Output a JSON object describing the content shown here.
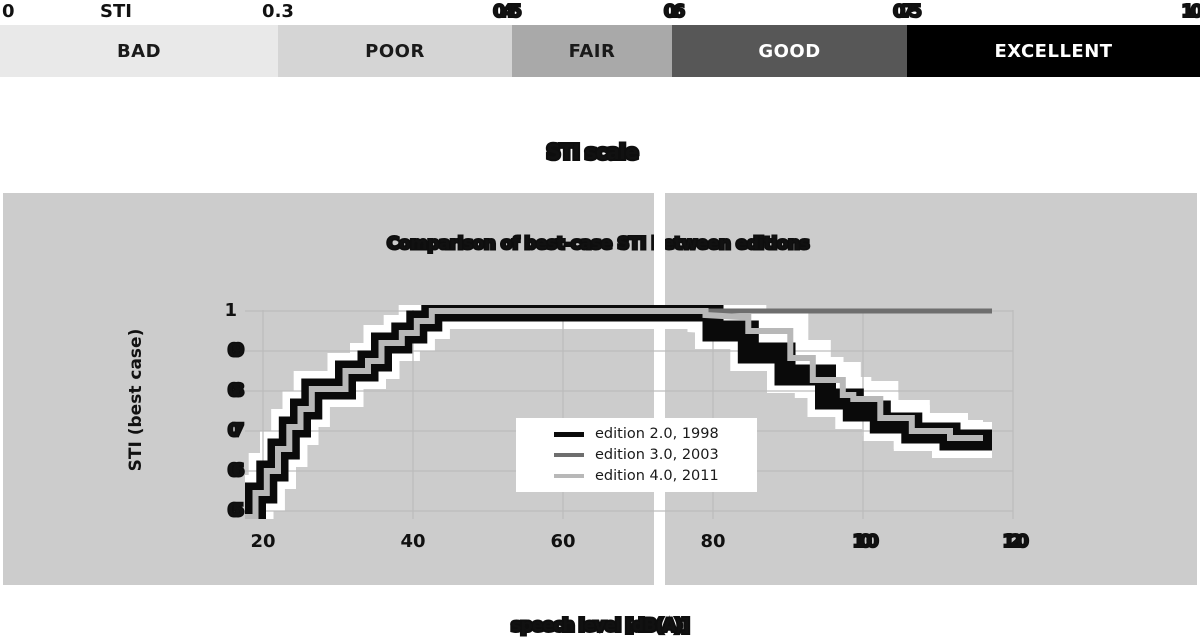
{
  "scale_bar": {
    "axis_label": "STI",
    "ticks": [
      "0",
      "0.3",
      "0.45",
      "0.6",
      "0.75",
      "1.0"
    ],
    "categories": [
      {
        "label": "BAD",
        "color": "#e9e9e9",
        "text_color": "#1a1a1a"
      },
      {
        "label": "POOR",
        "color": "#d5d5d5",
        "text_color": "#1a1a1a"
      },
      {
        "label": "FAIR",
        "color": "#a9a9a9",
        "text_color": "#1a1a1a"
      },
      {
        "label": "GOOD",
        "color": "#575757",
        "text_color": "#ffffff"
      },
      {
        "label": "EXCELLENT",
        "color": "#000000",
        "text_color": "#ffffff"
      }
    ]
  },
  "figure_title": "STI scale",
  "chart_data": {
    "type": "line",
    "title": "Comparison of best-case STI between editions",
    "ylabel": "STI (best case)",
    "xlabel": "speech level [dB(A)]",
    "xlim": [
      17.6,
      123
    ],
    "ylim": [
      0.4825,
      1.0
    ],
    "xticklabels": [
      "20",
      "40",
      "60",
      "80",
      "100",
      "120"
    ],
    "xtick_values": [
      20,
      40,
      60,
      80,
      100,
      120
    ],
    "yticklabels": [
      "1",
      "0.9",
      "0.8",
      "0.7",
      "0.6",
      "0.5"
    ],
    "ytick_values": [
      1,
      0.9,
      0.8,
      0.7,
      0.6,
      0.5
    ],
    "grid": true,
    "grid_color": "#bdbdbd",
    "background": "#cccccc",
    "legend_position": "center",
    "series": [
      {
        "label": "edition 2.0,  1998",
        "color": "#0a0a0a",
        "linewidth": 21,
        "underlay": true,
        "points": [
          [
            17.6,
            0.485
          ],
          [
            19,
            0.485
          ],
          [
            19,
            0.545
          ],
          [
            20.5,
            0.545
          ],
          [
            20.5,
            0.6
          ],
          [
            22,
            0.6
          ],
          [
            22,
            0.655
          ],
          [
            23.5,
            0.655
          ],
          [
            23.5,
            0.71
          ],
          [
            25,
            0.71
          ],
          [
            25,
            0.755
          ],
          [
            26.5,
            0.755
          ],
          [
            26.5,
            0.805
          ],
          [
            31,
            0.805
          ],
          [
            31,
            0.85
          ],
          [
            34,
            0.85
          ],
          [
            34,
            0.875
          ],
          [
            35.8,
            0.875
          ],
          [
            35.8,
            0.92
          ],
          [
            38.5,
            0.92
          ],
          [
            38.5,
            0.945
          ],
          [
            40.5,
            0.945
          ],
          [
            40.5,
            0.975
          ],
          [
            42.5,
            0.975
          ],
          [
            42.5,
            1.0
          ],
          [
            80,
            1.0
          ],
          [
            80,
            0.95
          ],
          [
            84.7,
            0.95
          ],
          [
            84.7,
            0.895
          ],
          [
            89.6,
            0.895
          ],
          [
            89.6,
            0.84
          ],
          [
            95,
            0.84
          ],
          [
            95,
            0.78
          ],
          [
            98.7,
            0.78
          ],
          [
            98.7,
            0.75
          ],
          [
            102.3,
            0.75
          ],
          [
            102.3,
            0.72
          ],
          [
            106.5,
            0.72
          ],
          [
            106.5,
            0.695
          ],
          [
            111.6,
            0.695
          ],
          [
            111.6,
            0.6775
          ],
          [
            117.2,
            0.6775
          ]
        ]
      },
      {
        "label": "edition 3.0,  2003",
        "color": "#6e6e6e",
        "linewidth": 5,
        "underlay": false,
        "points": [
          [
            17.6,
            0.485
          ],
          [
            19,
            0.485
          ],
          [
            19,
            0.545
          ],
          [
            20.5,
            0.545
          ],
          [
            20.5,
            0.6
          ],
          [
            22,
            0.6
          ],
          [
            22,
            0.655
          ],
          [
            23.5,
            0.655
          ],
          [
            23.5,
            0.71
          ],
          [
            25,
            0.71
          ],
          [
            25,
            0.755
          ],
          [
            26.5,
            0.755
          ],
          [
            26.5,
            0.805
          ],
          [
            31,
            0.805
          ],
          [
            31,
            0.85
          ],
          [
            34,
            0.85
          ],
          [
            34,
            0.875
          ],
          [
            35.8,
            0.875
          ],
          [
            35.8,
            0.92
          ],
          [
            38.5,
            0.92
          ],
          [
            38.5,
            0.945
          ],
          [
            40.5,
            0.945
          ],
          [
            40.5,
            0.975
          ],
          [
            42.5,
            0.975
          ],
          [
            42.5,
            1.0
          ],
          [
            117.2,
            1.0
          ]
        ]
      },
      {
        "label": "edition 4.0,  2011",
        "color": "#b8b8b8",
        "linewidth": 6,
        "underlay": true,
        "points": [
          [
            17.6,
            0.485
          ],
          [
            19,
            0.485
          ],
          [
            19,
            0.545
          ],
          [
            20.5,
            0.545
          ],
          [
            20.5,
            0.6
          ],
          [
            22,
            0.6
          ],
          [
            22,
            0.655
          ],
          [
            23.5,
            0.655
          ],
          [
            23.5,
            0.71
          ],
          [
            25,
            0.71
          ],
          [
            25,
            0.755
          ],
          [
            26.5,
            0.755
          ],
          [
            26.5,
            0.805
          ],
          [
            31,
            0.805
          ],
          [
            31,
            0.85
          ],
          [
            34,
            0.85
          ],
          [
            34,
            0.875
          ],
          [
            35.8,
            0.875
          ],
          [
            35.8,
            0.92
          ],
          [
            38.5,
            0.92
          ],
          [
            38.5,
            0.945
          ],
          [
            40.5,
            0.945
          ],
          [
            40.5,
            0.975
          ],
          [
            42.5,
            0.975
          ],
          [
            42.5,
            1.0
          ],
          [
            79,
            1.0
          ],
          [
            79,
            0.99
          ],
          [
            83.6,
            0.985
          ],
          [
            84.7,
            0.985
          ],
          [
            84.7,
            0.95
          ],
          [
            90.3,
            0.95
          ],
          [
            90.3,
            0.8825
          ],
          [
            93.3,
            0.8825
          ],
          [
            93.3,
            0.8275
          ],
          [
            97.3,
            0.8275
          ],
          [
            97.3,
            0.79
          ],
          [
            98.7,
            0.79
          ],
          [
            98.7,
            0.78
          ],
          [
            102.3,
            0.78
          ],
          [
            102.3,
            0.7325
          ],
          [
            106.5,
            0.7325
          ],
          [
            106.5,
            0.7
          ],
          [
            111.6,
            0.7
          ],
          [
            111.6,
            0.6825
          ],
          [
            116,
            0.6825
          ]
        ]
      }
    ]
  }
}
